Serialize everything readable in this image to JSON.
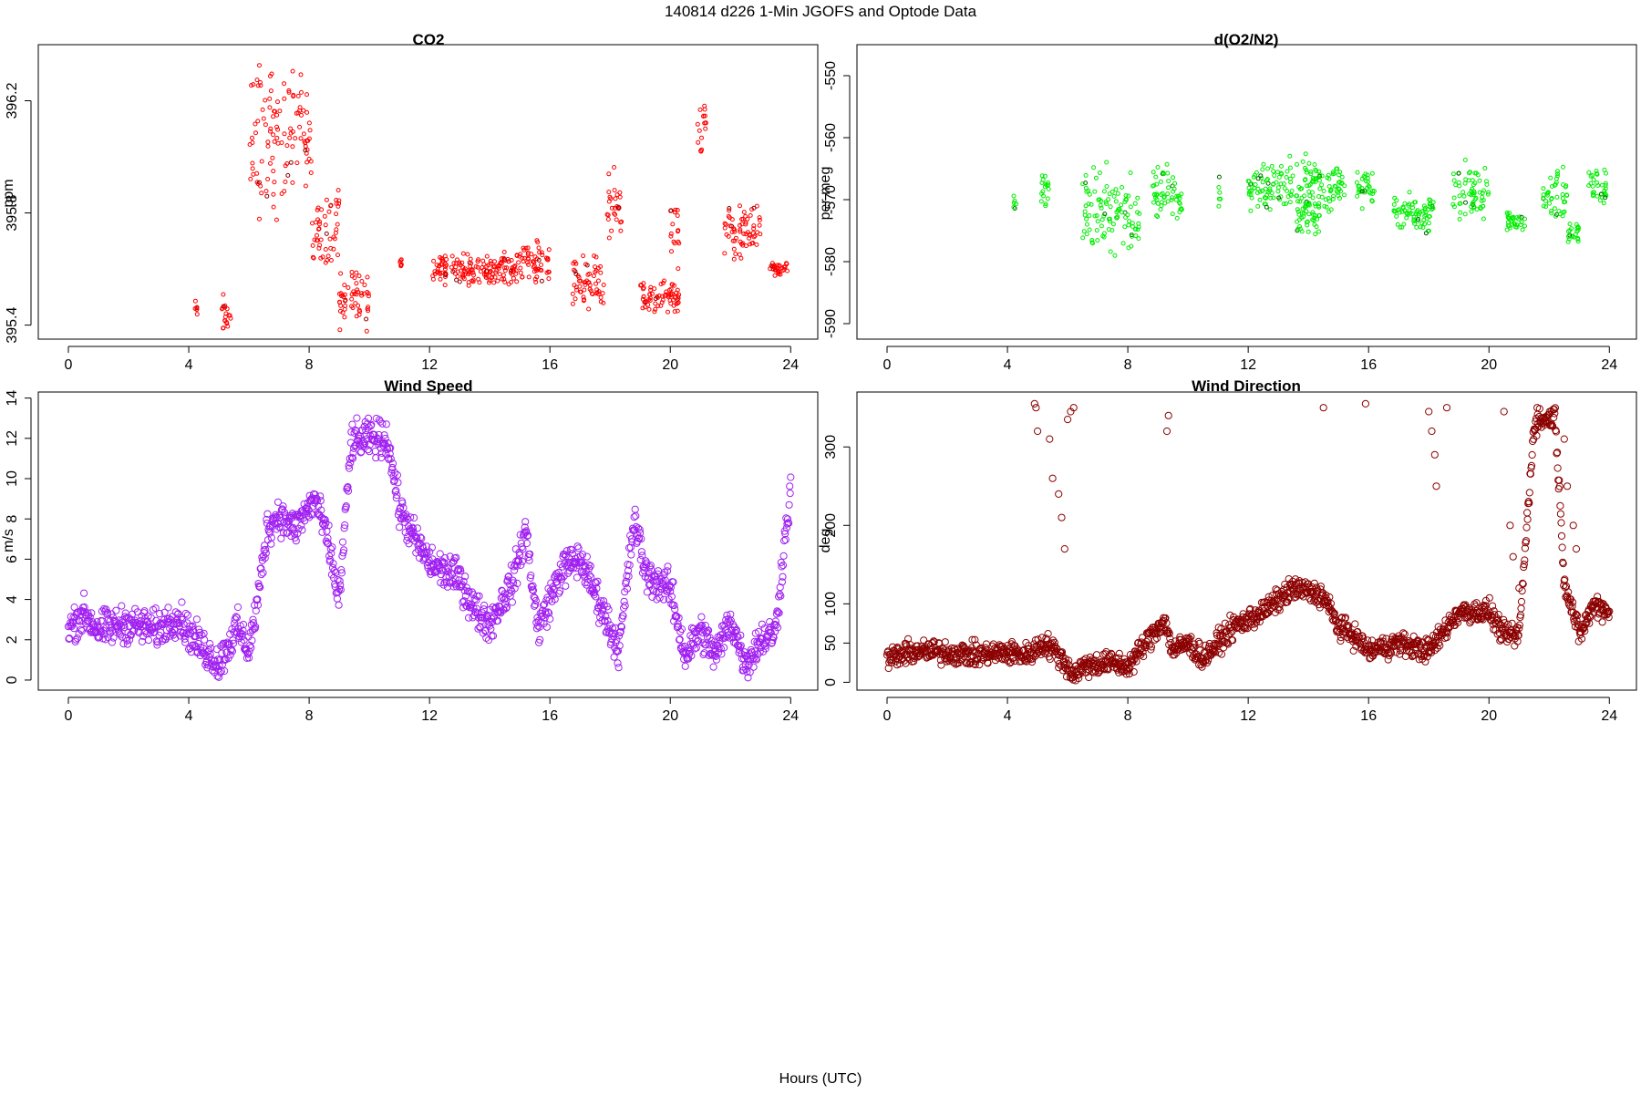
{
  "figure": {
    "title": "140814   d226   1-Min  JGOFS and Optode Data",
    "xlabel": "Hours (UTC)"
  },
  "chart_data": [
    {
      "type": "scatter",
      "title": "CO2",
      "xlabel": "",
      "ylabel": "ppm",
      "xlim": [
        -1,
        24.9
      ],
      "ylim": [
        395.35,
        396.4
      ],
      "xticks": [
        0,
        4,
        8,
        12,
        16,
        20,
        24
      ],
      "yticks": [
        395.4,
        395.8,
        396.2
      ],
      "ytick_labels": [
        "395.4",
        "395.8",
        "396.2"
      ],
      "color": "#ff0000",
      "highlight_color": "#8b0000",
      "segments": [
        {
          "from": 4.2,
          "to": 4.3,
          "base": 395.47,
          "amp": 0.04,
          "noise": 0.04
        },
        {
          "from": 5.05,
          "to": 5.4,
          "base": 395.45,
          "amp": 0.06,
          "noise": 0.06
        },
        {
          "from": 6.0,
          "to": 7.2,
          "base": 396.05,
          "amp": 0.3,
          "noise": 0.12
        },
        {
          "from": 7.2,
          "to": 8.1,
          "base": 396.1,
          "amp": 0.25,
          "noise": 0.1
        },
        {
          "from": 8.1,
          "to": 9.0,
          "base": 395.75,
          "amp": 0.15,
          "noise": 0.1
        },
        {
          "from": 9.0,
          "to": 10.0,
          "base": 395.5,
          "amp": 0.1,
          "noise": 0.07
        },
        {
          "from": 11.0,
          "to": 11.1,
          "base": 395.6,
          "amp": 0.03,
          "noise": 0.05
        },
        {
          "from": 12.0,
          "to": 15.0,
          "base": 395.6,
          "amp": 0.04,
          "noise": 0.04
        },
        {
          "from": 15.0,
          "to": 16.0,
          "base": 395.62,
          "amp": 0.05,
          "noise": 0.06
        },
        {
          "from": 16.7,
          "to": 17.8,
          "base": 395.55,
          "amp": 0.08,
          "noise": 0.06
        },
        {
          "from": 17.9,
          "to": 18.4,
          "base": 395.82,
          "amp": 0.1,
          "noise": 0.08
        },
        {
          "from": 19.0,
          "to": 20.3,
          "base": 395.5,
          "amp": 0.05,
          "noise": 0.04
        },
        {
          "from": 20.0,
          "to": 20.3,
          "base": 395.7,
          "amp": 0.1,
          "noise": 0.1
        },
        {
          "from": 20.9,
          "to": 21.2,
          "base": 396.1,
          "amp": 0.1,
          "noise": 0.08
        },
        {
          "from": 21.8,
          "to": 22.4,
          "base": 395.72,
          "amp": 0.1,
          "noise": 0.08
        },
        {
          "from": 22.4,
          "to": 23.0,
          "base": 395.75,
          "amp": 0.1,
          "noise": 0.08
        },
        {
          "from": 23.3,
          "to": 23.9,
          "base": 395.6,
          "amp": 0.02,
          "noise": 0.02
        }
      ]
    },
    {
      "type": "scatter",
      "title": "d(O2/N2)",
      "xlabel": "",
      "ylabel": "per meg",
      "xlim": [
        -1,
        24.9
      ],
      "ylim": [
        -592.5,
        -545
      ],
      "xticks": [
        0,
        4,
        8,
        12,
        16,
        20,
        24
      ],
      "yticks": [
        -590,
        -580,
        -570,
        -560,
        -550
      ],
      "ytick_labels": [
        "-590",
        "-580",
        "-570",
        "-560",
        "-550"
      ],
      "color": "#00ee00",
      "highlight_color": "#006400",
      "segments": [
        {
          "from": 4.2,
          "to": 4.3,
          "base": -569.5,
          "amp": 1.5,
          "noise": 2
        },
        {
          "from": 5.1,
          "to": 5.4,
          "base": -568,
          "amp": 2,
          "noise": 3
        },
        {
          "from": 6.5,
          "to": 8.0,
          "base": -572,
          "amp": 4,
          "noise": 6
        },
        {
          "from": 8.0,
          "to": 8.4,
          "base": -573,
          "amp": 4,
          "noise": 6
        },
        {
          "from": 8.8,
          "to": 9.8,
          "base": -569,
          "amp": 3,
          "noise": 5
        },
        {
          "from": 11.0,
          "to": 11.1,
          "base": -570,
          "amp": 2,
          "noise": 4
        },
        {
          "from": 12.0,
          "to": 15.2,
          "base": -567.5,
          "amp": 2.5,
          "noise": 4
        },
        {
          "from": 13.6,
          "to": 14.4,
          "base": -573,
          "amp": 2,
          "noise": 3
        },
        {
          "from": 15.6,
          "to": 16.2,
          "base": -568,
          "amp": 2,
          "noise": 3
        },
        {
          "from": 16.8,
          "to": 18.2,
          "base": -572,
          "amp": 2,
          "noise": 3
        },
        {
          "from": 18.8,
          "to": 20.0,
          "base": -569,
          "amp": 3,
          "noise": 4
        },
        {
          "from": 20.6,
          "to": 21.2,
          "base": -573.5,
          "amp": 1,
          "noise": 2
        },
        {
          "from": 21.8,
          "to": 22.6,
          "base": -569,
          "amp": 3,
          "noise": 4
        },
        {
          "from": 22.6,
          "to": 23.0,
          "base": -576,
          "amp": 2,
          "noise": 2
        },
        {
          "from": 23.3,
          "to": 23.9,
          "base": -568,
          "amp": 2,
          "noise": 3
        }
      ]
    },
    {
      "type": "scatter",
      "title": "Wind Speed",
      "xlabel": "",
      "ylabel": "m/s",
      "xlim": [
        -1,
        24.9
      ],
      "ylim": [
        -0.5,
        14.3
      ],
      "xticks": [
        0,
        4,
        8,
        12,
        16,
        20,
        24
      ],
      "yticks": [
        0,
        2,
        4,
        6,
        8,
        10,
        12,
        14
      ],
      "ytick_labels": [
        "0",
        "2",
        "4",
        "6",
        "8",
        "10",
        "12",
        "14"
      ],
      "color": "#a020f0",
      "highlight_color": "#a020f0",
      "profile": [
        [
          0,
          2.6
        ],
        [
          0.5,
          3.3
        ],
        [
          1,
          2.5
        ],
        [
          2,
          2.8
        ],
        [
          3,
          2.5
        ],
        [
          3.6,
          3.2
        ],
        [
          4.2,
          2.0
        ],
        [
          5.0,
          0.8
        ],
        [
          5.6,
          2.6
        ],
        [
          6.0,
          1.5
        ],
        [
          6.3,
          4.0
        ],
        [
          6.6,
          7.5
        ],
        [
          7.0,
          8.2
        ],
        [
          7.5,
          7.5
        ],
        [
          8.2,
          9.0
        ],
        [
          8.6,
          7.0
        ],
        [
          9.0,
          4.0
        ],
        [
          9.4,
          11.8
        ],
        [
          10.0,
          12.0
        ],
        [
          10.6,
          12.0
        ],
        [
          11.0,
          8.5
        ],
        [
          11.5,
          7.0
        ],
        [
          12.0,
          5.8
        ],
        [
          13.0,
          5.0
        ],
        [
          13.5,
          3.5
        ],
        [
          14.0,
          2.8
        ],
        [
          14.8,
          5.0
        ],
        [
          15.2,
          7.5
        ],
        [
          15.6,
          2.5
        ],
        [
          16.4,
          5.5
        ],
        [
          17.0,
          6.0
        ],
        [
          17.6,
          4.0
        ],
        [
          18.3,
          1.5
        ],
        [
          18.8,
          8.0
        ],
        [
          19.2,
          5.2
        ],
        [
          20.0,
          4.5
        ],
        [
          20.5,
          1.2
        ],
        [
          21.0,
          2.5
        ],
        [
          21.5,
          1.2
        ],
        [
          22.0,
          3.0
        ],
        [
          22.5,
          0.8
        ],
        [
          23.0,
          2.0
        ],
        [
          23.5,
          2.4
        ],
        [
          23.7,
          5.5
        ],
        [
          24.0,
          9.5
        ]
      ],
      "noise": 1.1
    },
    {
      "type": "scatter",
      "title": "Wind Direction",
      "xlabel": "",
      "ylabel": "deg",
      "xlim": [
        -1,
        24.9
      ],
      "ylim": [
        -10,
        370
      ],
      "xticks": [
        0,
        4,
        8,
        12,
        16,
        20,
        24
      ],
      "yticks": [
        0,
        50,
        100,
        200,
        300
      ],
      "ytick_labels": [
        "0",
        "50",
        "100",
        "200",
        "300"
      ],
      "color": "#8b0000",
      "highlight_color": "#8b0000",
      "profile": [
        [
          0,
          30
        ],
        [
          1,
          40
        ],
        [
          2,
          38
        ],
        [
          3,
          35
        ],
        [
          4,
          38
        ],
        [
          4.7,
          35
        ],
        [
          5.2,
          50
        ],
        [
          5.6,
          40
        ],
        [
          6.2,
          10
        ],
        [
          6.6,
          22
        ],
        [
          7.5,
          25
        ],
        [
          8.0,
          20
        ],
        [
          8.5,
          45
        ],
        [
          9.2,
          80
        ],
        [
          9.5,
          40
        ],
        [
          10.0,
          50
        ],
        [
          10.5,
          30
        ],
        [
          11.5,
          70
        ],
        [
          12.5,
          90
        ],
        [
          13.5,
          120
        ],
        [
          14.5,
          110
        ],
        [
          15.0,
          70
        ],
        [
          15.5,
          60
        ],
        [
          16.0,
          40
        ],
        [
          17.0,
          50
        ],
        [
          18.0,
          40
        ],
        [
          18.6,
          70
        ],
        [
          19.0,
          90
        ],
        [
          20.0,
          90
        ],
        [
          20.5,
          60
        ],
        [
          21.0,
          60
        ],
        [
          21.5,
          330
        ],
        [
          22.2,
          340
        ],
        [
          22.5,
          130
        ],
        [
          23.0,
          60
        ],
        [
          23.5,
          100
        ],
        [
          24.0,
          90
        ]
      ],
      "noise": 18,
      "outliers": [
        [
          4.9,
          355
        ],
        [
          4.95,
          350
        ],
        [
          5.0,
          320
        ],
        [
          5.4,
          310
        ],
        [
          5.5,
          260
        ],
        [
          5.7,
          240
        ],
        [
          5.8,
          210
        ],
        [
          5.9,
          170
        ],
        [
          6.0,
          335
        ],
        [
          6.1,
          345
        ],
        [
          6.2,
          350
        ],
        [
          9.3,
          320
        ],
        [
          9.35,
          340
        ],
        [
          14.5,
          350
        ],
        [
          15.9,
          355
        ],
        [
          18.0,
          345
        ],
        [
          18.1,
          320
        ],
        [
          18.2,
          290
        ],
        [
          18.25,
          250
        ],
        [
          18.6,
          350
        ],
        [
          20.5,
          345
        ],
        [
          20.7,
          200
        ],
        [
          20.8,
          160
        ],
        [
          21.0,
          120
        ],
        [
          21.6,
          350
        ],
        [
          22.5,
          310
        ],
        [
          22.6,
          250
        ],
        [
          22.8,
          200
        ],
        [
          22.9,
          170
        ]
      ]
    }
  ]
}
